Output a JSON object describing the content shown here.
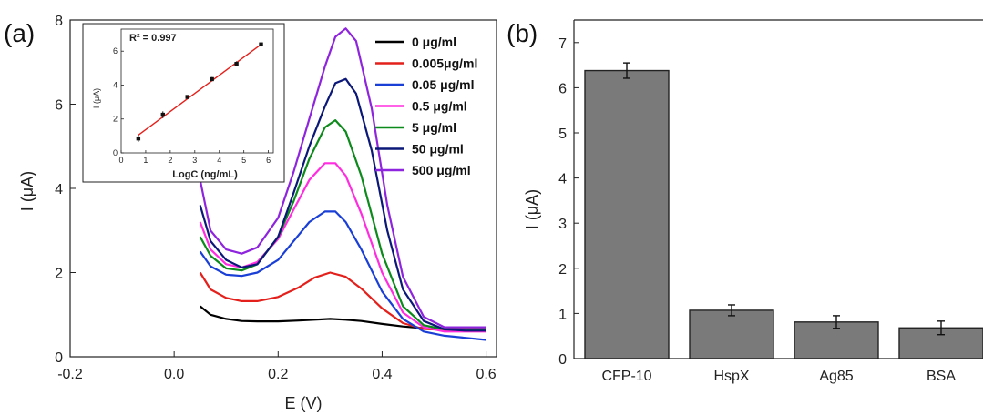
{
  "chart_data": [
    {
      "panel": "(a)",
      "type": "line",
      "xlabel": "E (V)",
      "ylabel": "I (μA)",
      "xlim": [
        -0.2,
        0.62
      ],
      "ylim": [
        0,
        8
      ],
      "xticks": [
        "-0.2",
        "0.0",
        "0.2",
        "0.4",
        "0.6"
      ],
      "xtick_values": [
        -0.2,
        0.0,
        0.2,
        0.4,
        0.6
      ],
      "yticks": [
        "0",
        "2",
        "4",
        "6",
        "8"
      ],
      "ytick_values": [
        0,
        2,
        4,
        6,
        8
      ],
      "legend_position": "top-right",
      "series": [
        {
          "name": "0 μg/ml",
          "color": "#000000",
          "x": [
            0.05,
            0.07,
            0.1,
            0.13,
            0.16,
            0.2,
            0.24,
            0.27,
            0.3,
            0.33,
            0.36,
            0.4,
            0.44,
            0.48,
            0.52,
            0.56,
            0.6
          ],
          "y": [
            1.2,
            1.0,
            0.9,
            0.85,
            0.84,
            0.84,
            0.86,
            0.88,
            0.9,
            0.88,
            0.85,
            0.78,
            0.72,
            0.68,
            0.66,
            0.66,
            0.65
          ]
        },
        {
          "name": "0.005μg/ml",
          "color": "#e3201b",
          "x": [
            0.05,
            0.07,
            0.1,
            0.13,
            0.16,
            0.2,
            0.24,
            0.27,
            0.3,
            0.33,
            0.36,
            0.4,
            0.44,
            0.48,
            0.52,
            0.56,
            0.6
          ],
          "y": [
            2.0,
            1.6,
            1.4,
            1.32,
            1.32,
            1.42,
            1.65,
            1.88,
            2.0,
            1.9,
            1.62,
            1.15,
            0.8,
            0.66,
            0.64,
            0.66,
            0.65
          ]
        },
        {
          "name": "0.05 μg/ml",
          "color": "#1a3fd6",
          "x": [
            0.05,
            0.07,
            0.1,
            0.13,
            0.16,
            0.2,
            0.23,
            0.26,
            0.29,
            0.31,
            0.33,
            0.36,
            0.4,
            0.44,
            0.48,
            0.52,
            0.56,
            0.6
          ],
          "y": [
            2.5,
            2.15,
            1.95,
            1.92,
            2.0,
            2.3,
            2.75,
            3.2,
            3.45,
            3.45,
            3.2,
            2.55,
            1.55,
            0.9,
            0.6,
            0.5,
            0.45,
            0.4
          ]
        },
        {
          "name": "0.5 μg/ml",
          "color": "#ff2ddf",
          "x": [
            0.05,
            0.07,
            0.1,
            0.13,
            0.16,
            0.2,
            0.23,
            0.26,
            0.29,
            0.31,
            0.33,
            0.36,
            0.4,
            0.44,
            0.48,
            0.52,
            0.56,
            0.6
          ],
          "y": [
            3.2,
            2.55,
            2.2,
            2.12,
            2.25,
            2.8,
            3.5,
            4.2,
            4.6,
            4.6,
            4.3,
            3.4,
            2.0,
            1.05,
            0.7,
            0.6,
            0.6,
            0.6
          ]
        },
        {
          "name": "5 μg/ml",
          "color": "#0d8a1c",
          "x": [
            0.05,
            0.07,
            0.1,
            0.13,
            0.16,
            0.2,
            0.23,
            0.26,
            0.29,
            0.31,
            0.33,
            0.36,
            0.4,
            0.44,
            0.48,
            0.52,
            0.56,
            0.6
          ],
          "y": [
            2.85,
            2.4,
            2.1,
            2.05,
            2.2,
            2.85,
            3.7,
            4.7,
            5.45,
            5.62,
            5.35,
            4.3,
            2.45,
            1.2,
            0.75,
            0.65,
            0.65,
            0.65
          ]
        },
        {
          "name": "50 μg/ml",
          "color": "#0b1878",
          "x": [
            0.05,
            0.07,
            0.1,
            0.13,
            0.16,
            0.2,
            0.23,
            0.26,
            0.29,
            0.31,
            0.33,
            0.35,
            0.38,
            0.41,
            0.44,
            0.48,
            0.52,
            0.56,
            0.6
          ],
          "y": [
            3.6,
            2.75,
            2.3,
            2.12,
            2.2,
            2.85,
            3.9,
            5.0,
            5.95,
            6.5,
            6.6,
            6.25,
            4.9,
            3.0,
            1.6,
            0.85,
            0.65,
            0.62,
            0.62
          ]
        },
        {
          "name": "500 μg/ml",
          "color": "#8e24dd",
          "x": [
            0.05,
            0.07,
            0.1,
            0.13,
            0.16,
            0.2,
            0.23,
            0.26,
            0.29,
            0.31,
            0.33,
            0.35,
            0.38,
            0.41,
            0.44,
            0.48,
            0.52,
            0.56,
            0.6
          ],
          "y": [
            4.2,
            3.0,
            2.55,
            2.45,
            2.6,
            3.3,
            4.4,
            5.65,
            6.9,
            7.6,
            7.8,
            7.5,
            5.9,
            3.6,
            1.9,
            0.95,
            0.7,
            0.7,
            0.7
          ]
        }
      ],
      "inset": {
        "type": "scatter",
        "annotation": "R² = 0.997",
        "xlabel": "LogC (ng/mL)",
        "ylabel": "I (μA)",
        "xlim": [
          0,
          6.2
        ],
        "ylim": [
          0,
          7.3
        ],
        "xticks": [
          "0",
          "1",
          "2",
          "3",
          "4",
          "5",
          "6"
        ],
        "xtick_values": [
          0,
          1,
          2,
          3,
          4,
          5,
          6
        ],
        "yticks": [
          "0",
          "2",
          "4",
          "6"
        ],
        "ytick_values": [
          0,
          2,
          4,
          6
        ],
        "points": {
          "x": [
            0.7,
            1.7,
            2.7,
            3.7,
            4.7,
            5.7
          ],
          "y": [
            0.85,
            2.25,
            3.3,
            4.35,
            5.25,
            6.4
          ],
          "err": [
            0.2,
            0.2,
            0.1,
            0.12,
            0.15,
            0.18
          ]
        },
        "fit_line": {
          "x": [
            0.7,
            5.7
          ],
          "y": [
            1.05,
            6.4
          ],
          "color": "#e3201b"
        }
      }
    },
    {
      "panel": "(b)",
      "type": "bar",
      "xlabel": "",
      "ylabel": "I (μA)",
      "ylim": [
        0,
        7.5
      ],
      "yticks": [
        "0",
        "1",
        "2",
        "3",
        "4",
        "5",
        "6",
        "7"
      ],
      "ytick_values": [
        0,
        1,
        2,
        3,
        4,
        5,
        6,
        7
      ],
      "categories": [
        "CFP-10",
        "HspX",
        "Ag85",
        "BSA"
      ],
      "values": [
        6.38,
        1.07,
        0.81,
        0.68
      ],
      "errors": [
        0.17,
        0.12,
        0.14,
        0.15
      ],
      "bar_color": "#7a7a7a"
    }
  ]
}
